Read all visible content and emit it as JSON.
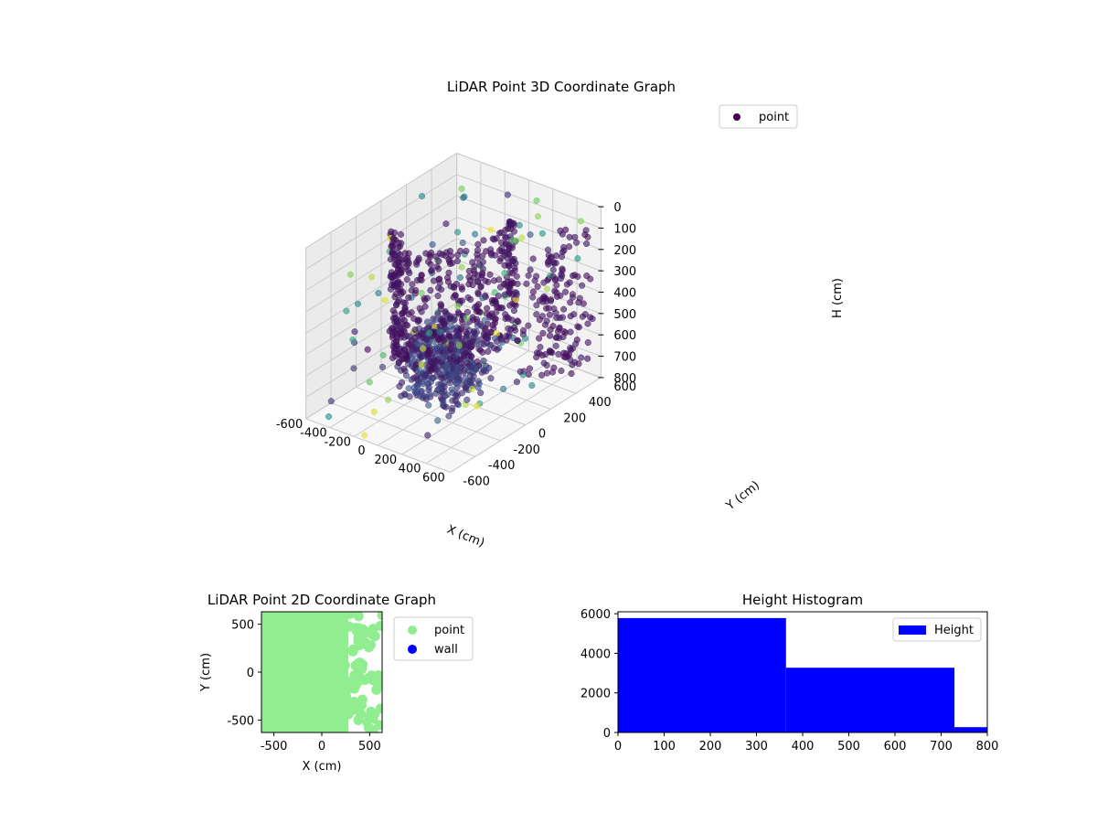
{
  "chart_data": [
    {
      "type": "scatter3d",
      "title": "LiDAR Point 3D Coordinate Graph",
      "xlabel": "X (cm)",
      "ylabel": "Y (cm)",
      "zlabel": "H (cm)",
      "xlim": [
        -600,
        600
      ],
      "ylim": [
        -600,
        600
      ],
      "zlim": [
        800,
        0
      ],
      "z_inverted": true,
      "xticks": [
        "-600",
        "-400",
        "-200",
        "0",
        "200",
        "400",
        "600"
      ],
      "yticks": [
        "-600",
        "-400",
        "-200",
        "0",
        "200",
        "400",
        "600"
      ],
      "zticks": [
        "0",
        "100",
        "200",
        "300",
        "400",
        "500",
        "600",
        "700",
        "800"
      ],
      "grid": true,
      "colormap": "viridis",
      "legend": {
        "placement": "upper-right",
        "entries": [
          {
            "name": "point",
            "color": "#440154"
          }
        ]
      },
      "note_points": "point cloud of ~9000 points; structure: curved wall of points from H 0-700, dense cluster near floor region"
    },
    {
      "type": "scatter",
      "title": "LiDAR Point 2D Coordinate Graph",
      "xlabel": "X (cm)",
      "ylabel": "Y (cm)",
      "xlim": [
        -630,
        630
      ],
      "ylim": [
        -630,
        630
      ],
      "xticks": [
        "-500",
        "0",
        "500"
      ],
      "yticks": [
        "-500",
        "0",
        "500"
      ],
      "legend": {
        "placement": "outside-right",
        "entries": [
          {
            "name": "point",
            "color": "#90ee90"
          },
          {
            "name": "wall",
            "color": "#0000ff"
          }
        ]
      }
    },
    {
      "type": "bar",
      "title": "Height Histogram",
      "xlabel": "",
      "ylabel": "",
      "xlim": [
        0,
        800
      ],
      "ylim": [
        0,
        6100
      ],
      "xticks": [
        "0",
        "100",
        "200",
        "300",
        "400",
        "500",
        "600",
        "700",
        "800"
      ],
      "yticks": [
        "0",
        "2000",
        "4000",
        "6000"
      ],
      "bins": [
        {
          "from": 0,
          "to": 364,
          "count": 5780
        },
        {
          "from": 364,
          "to": 729,
          "count": 3270
        },
        {
          "from": 729,
          "to": 800,
          "count": 270
        }
      ],
      "color": "#0000ff",
      "legend": {
        "placement": "upper-right",
        "entries": [
          {
            "name": "Height",
            "color": "#0000ff"
          }
        ]
      }
    }
  ]
}
